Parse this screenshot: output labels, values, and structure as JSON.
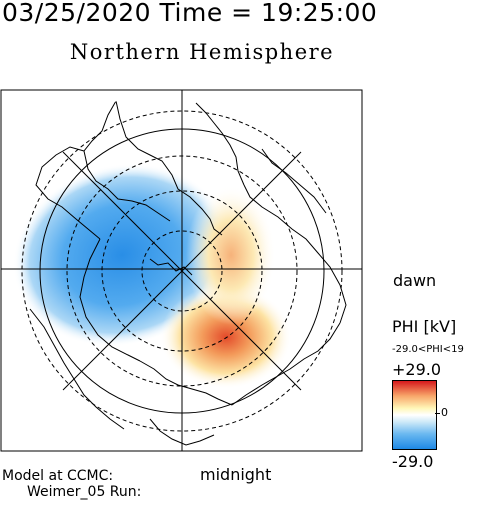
{
  "header": {
    "timestamp": "03/25/2020 Time = 19:25:00",
    "hemisphere": "Northern Hemisphere"
  },
  "map": {
    "local_time_labels": {
      "dawn": "dawn",
      "midnight": "midnight"
    }
  },
  "colorbar": {
    "title": "PHI [kV]",
    "range_text": "-29.0<PHI<19",
    "max_label": "+29.0",
    "mid_label": "0",
    "min_label": "-29.0",
    "colors": {
      "max": "#d7191c",
      "mid": "#ffffff",
      "min": "#1e88e5"
    }
  },
  "footer": {
    "line1": "Model at CCMC:",
    "line2": "Weimer_05 Run:"
  }
}
